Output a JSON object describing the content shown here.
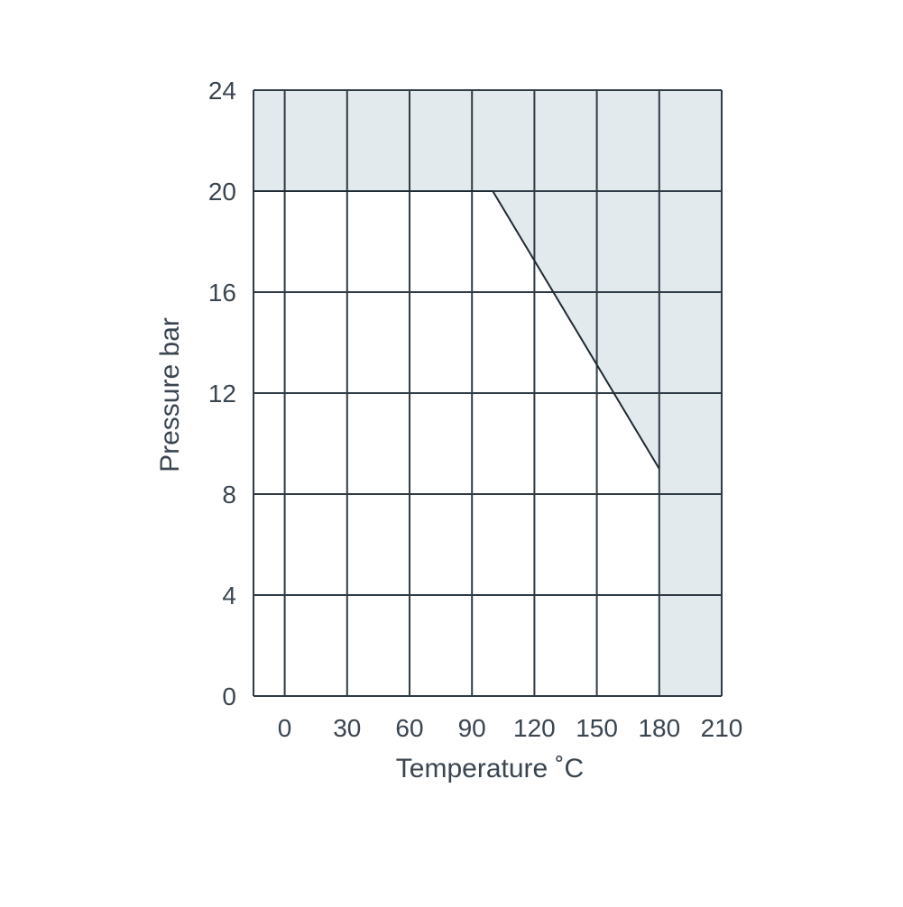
{
  "chart_data": {
    "type": "line",
    "xlabel": "Temperature ˚C",
    "ylabel": "Pressure bar",
    "x_ticks": [
      "0",
      "30",
      "60",
      "90",
      "120",
      "150",
      "180",
      "210"
    ],
    "y_ticks": [
      "24",
      "20",
      "16",
      "12",
      "8",
      "4",
      "0"
    ],
    "xlim": [
      -15,
      210
    ],
    "ylim": [
      0,
      24
    ],
    "grid": true,
    "series": [
      {
        "x": [
          -15,
          100,
          180
        ],
        "y": [
          20,
          20,
          9
        ]
      }
    ],
    "colors": {
      "line": "#1f2a33",
      "grid": "#2f3b45",
      "shaded_region": "#e3eaed",
      "text": "#3a4550"
    }
  }
}
